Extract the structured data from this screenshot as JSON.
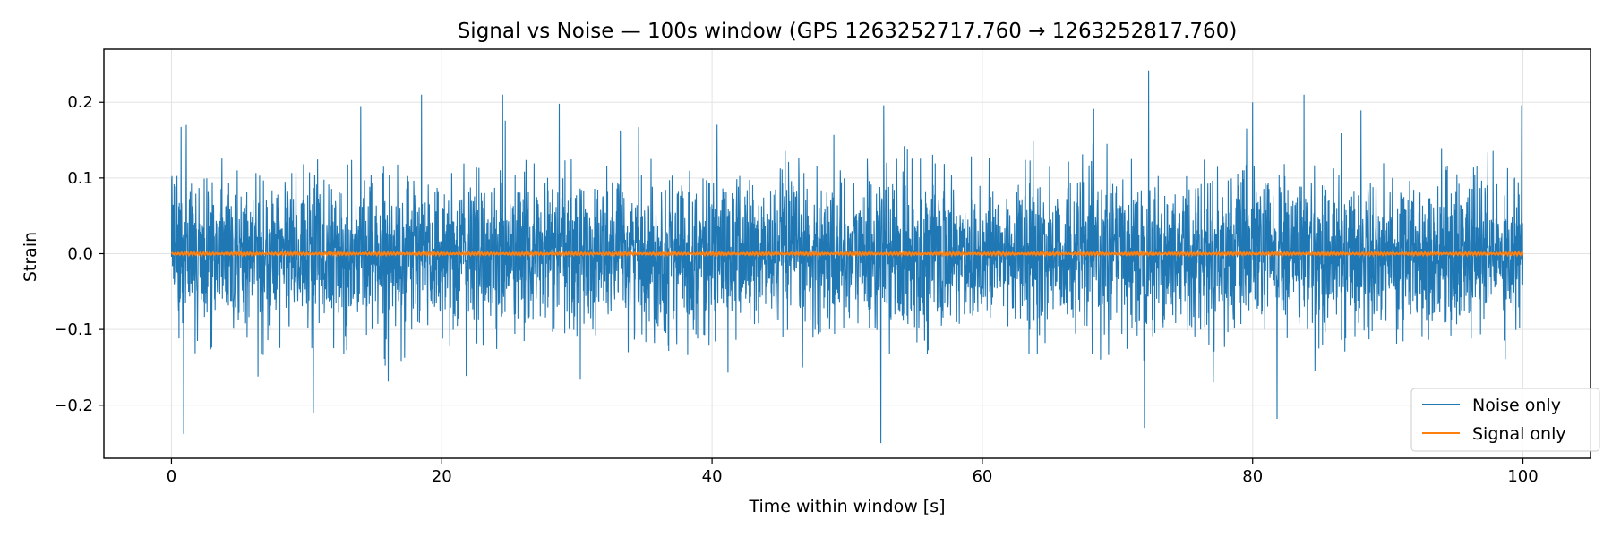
{
  "chart_data": {
    "type": "line",
    "title": "Signal vs Noise — 100s window (GPS 1263252717.760 → 1263252817.760)",
    "xlabel": "Time within window [s]",
    "ylabel": "Strain",
    "xlim": [
      -5,
      105
    ],
    "ylim": [
      -0.27,
      0.27
    ],
    "xticks": [
      0,
      20,
      40,
      60,
      80,
      100
    ],
    "xtick_labels": [
      "0",
      "20",
      "40",
      "60",
      "80",
      "100"
    ],
    "yticks": [
      -0.2,
      -0.1,
      0.0,
      0.1,
      0.2
    ],
    "ytick_labels": [
      "−0.2",
      "−0.1",
      "0.0",
      "0.1",
      "0.2"
    ],
    "grid": true,
    "legend_position": "bottom-right",
    "series": [
      {
        "name": "Noise only",
        "color": "#1f77b4",
        "x_range": [
          0,
          100
        ],
        "typical_amplitude": 0.1,
        "peaks": [
          {
            "x": 0.9,
            "y": -0.238
          },
          {
            "x": 1.1,
            "y": 0.17
          },
          {
            "x": 10.5,
            "y": -0.21
          },
          {
            "x": 18.5,
            "y": 0.21
          },
          {
            "x": 24.5,
            "y": 0.21
          },
          {
            "x": 28.7,
            "y": 0.198
          },
          {
            "x": 52.5,
            "y": -0.25
          },
          {
            "x": 52.7,
            "y": 0.196
          },
          {
            "x": 72.3,
            "y": 0.242
          },
          {
            "x": 72.0,
            "y": -0.23
          },
          {
            "x": 80.0,
            "y": 0.2
          },
          {
            "x": 81.8,
            "y": -0.218
          },
          {
            "x": 83.8,
            "y": 0.21
          },
          {
            "x": 99.9,
            "y": 0.196
          }
        ]
      },
      {
        "name": "Signal only",
        "color": "#ff7f0e",
        "x_range": [
          0,
          100
        ],
        "typical_amplitude": 0.002
      }
    ]
  }
}
